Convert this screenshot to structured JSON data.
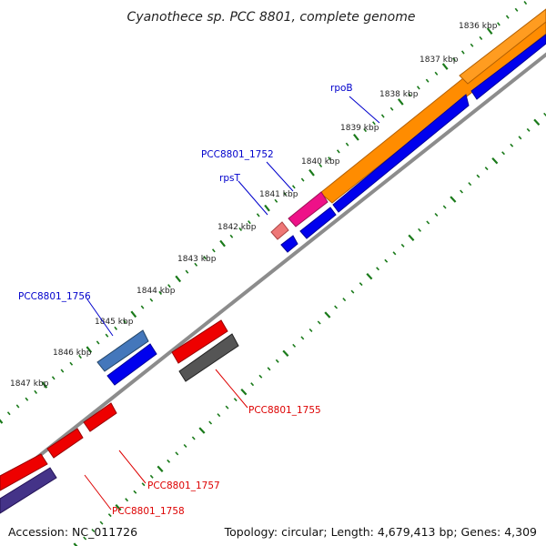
{
  "title": "Cyanothece sp. PCC 8801, complete genome",
  "footer": {
    "accession": "Accession: NC_011726",
    "topology": "Topology: circular; Length: 4,679,413 bp; Genes: 4,309"
  },
  "colors": {
    "backbone": "#8c8c8c",
    "tick_dots": "#1a7a1a",
    "label_blue": "#0000cc",
    "label_red": "#dd0000",
    "orf_orange": "#ff8c00",
    "orf_blue": "#0000ee",
    "orf_pink": "#ee1188",
    "orf_salmon": "#ee7777",
    "orf_steel": "#4477bb",
    "orf_red": "#ee0000",
    "orf_gray": "#555555",
    "orf_purple": "#443388"
  },
  "ticks": [
    {
      "label": "1836 kbp"
    },
    {
      "label": "1837 kbp"
    },
    {
      "label": "1838 kbp"
    },
    {
      "label": "1839 kbp"
    },
    {
      "label": "1840 kbp"
    },
    {
      "label": "1841 kbp"
    },
    {
      "label": "1842 kbp"
    },
    {
      "label": "1843 kbp"
    },
    {
      "label": "1844 kbp"
    },
    {
      "label": "1845 kbp"
    },
    {
      "label": "1846 kbp"
    },
    {
      "label": "1847 kbp"
    }
  ],
  "gene_labels": [
    {
      "text": "rpoB",
      "color": "blue"
    },
    {
      "text": "PCC8801_1752",
      "color": "blue"
    },
    {
      "text": "rpsT",
      "color": "blue"
    },
    {
      "text": "PCC8801_1756",
      "color": "blue"
    },
    {
      "text": "PCC8801_1755",
      "color": "red"
    },
    {
      "text": "PCC8801_1757",
      "color": "red"
    },
    {
      "text": "PCC8801_1758",
      "color": "red"
    }
  ]
}
